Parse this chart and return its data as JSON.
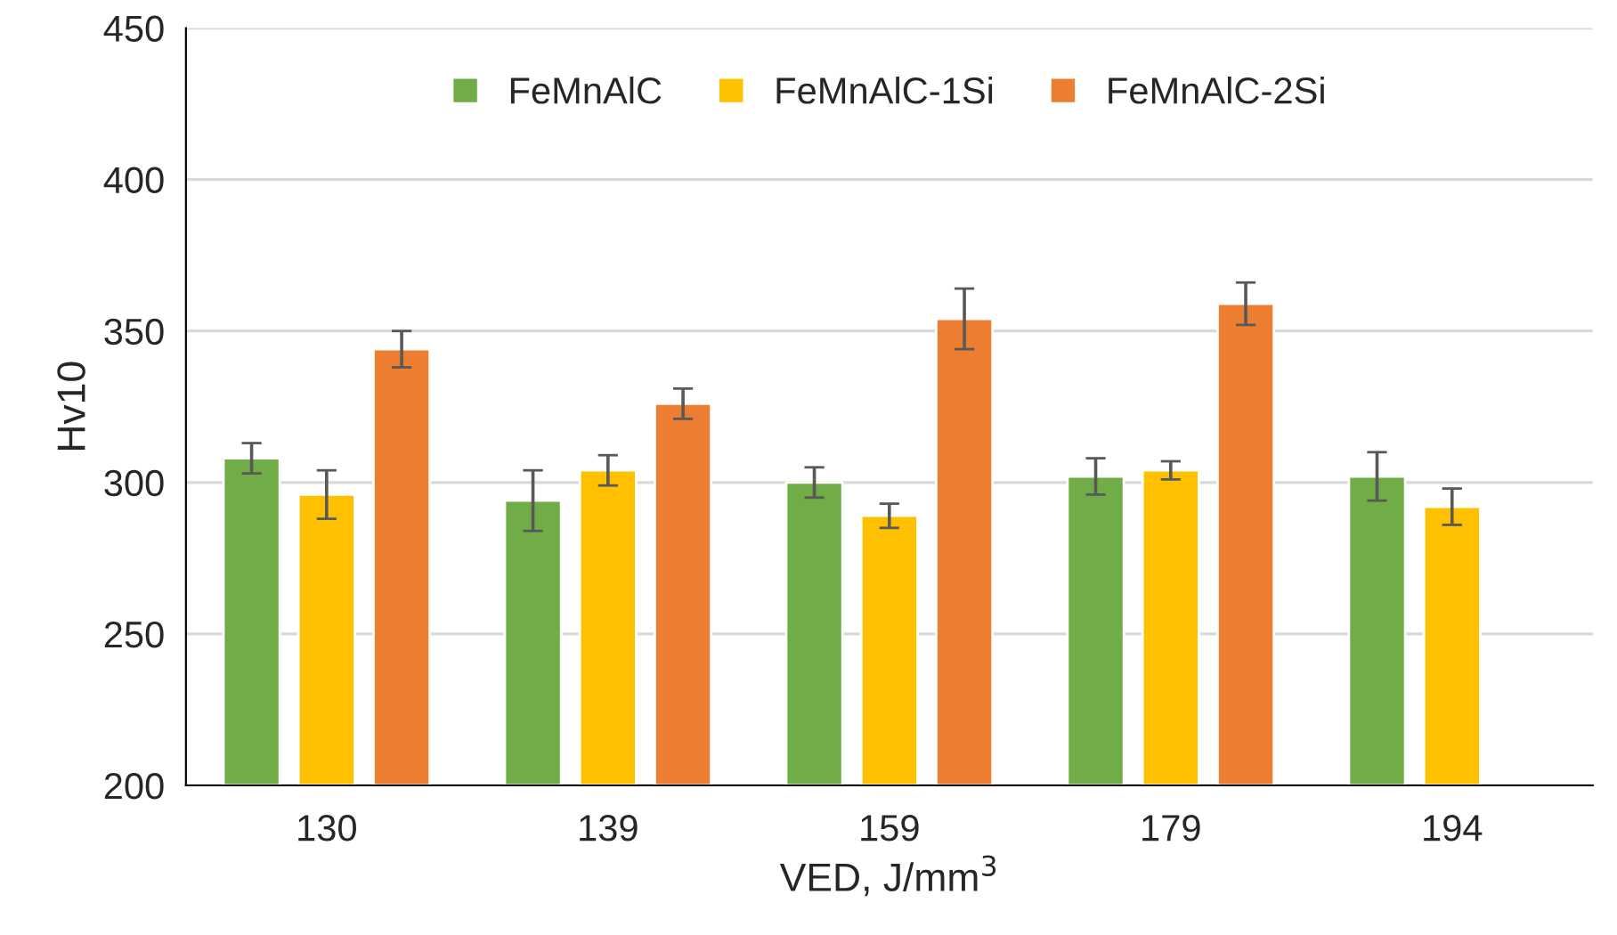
{
  "chart_data": {
    "type": "bar",
    "xlabel": "VED, J/mm$^{3}$",
    "ylabel": "Hv10",
    "categories": [
      "130",
      "139",
      "159",
      "179",
      "194"
    ],
    "series": [
      {
        "name": "FeMnAlC",
        "color": "#70ad47",
        "values": [
          308,
          294,
          300,
          302,
          302
        ],
        "errors": [
          5,
          10,
          5,
          6,
          8
        ]
      },
      {
        "name": "FeMnAlC-1Si",
        "color": "#ffc000",
        "values": [
          296,
          304,
          289,
          304,
          292
        ],
        "errors": [
          8,
          5,
          4,
          3,
          6
        ]
      },
      {
        "name": "FeMnAlC-2Si",
        "color": "#ed7d31",
        "values": [
          344,
          326,
          354,
          359,
          null
        ],
        "errors": [
          6,
          5,
          10,
          7,
          null
        ]
      }
    ],
    "ylim": [
      200,
      450
    ],
    "yticks": [
      200,
      250,
      300,
      350,
      400,
      450
    ],
    "grid": "y",
    "legend": "top"
  }
}
